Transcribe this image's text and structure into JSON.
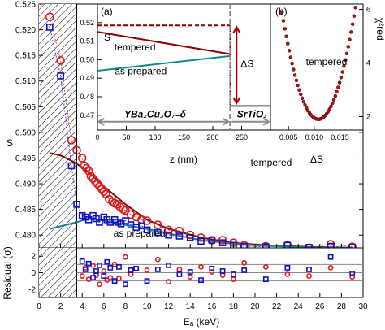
{
  "chart_data": [
    {
      "id": "main",
      "type": "scatter",
      "xlabel": "Eₐ (keV)",
      "ylabel": "S",
      "xlim": [
        0,
        30
      ],
      "ylim": [
        0.4775,
        0.525
      ],
      "xticks": [
        0,
        2,
        4,
        6,
        8,
        10,
        12,
        14,
        16,
        18,
        20,
        22,
        24,
        26,
        28,
        30
      ],
      "yticks": [
        0.48,
        0.485,
        0.49,
        0.495,
        0.5,
        0.505,
        0.51,
        0.515,
        0.52,
        0.525
      ],
      "shaded_region_x": [
        0,
        3.5
      ],
      "annotations": [
        {
          "text": "tempered",
          "x": 21.5,
          "y": 0.4935,
          "color": "#cc0000"
        },
        {
          "text": "as prepared",
          "x": 9.3,
          "y": 0.4797,
          "color": "#0000cc"
        }
      ],
      "series": [
        {
          "marker": "circle",
          "color": "#e0191a",
          "x": [
            1.0,
            2.0,
            3.0,
            3.5,
            4.0,
            4.2,
            4.4,
            4.6,
            4.8,
            5.0,
            5.2,
            5.4,
            5.6,
            5.8,
            6.0,
            6.2,
            6.5,
            6.8,
            7.0,
            7.2,
            7.5,
            7.8,
            8.0,
            8.5,
            9.0,
            9.5,
            10.0,
            11.0,
            12.0,
            13.0,
            14.0,
            15.0,
            16.0,
            17.0,
            18.0,
            19.0,
            21.0,
            23.0,
            25.0,
            27.0,
            29.0
          ],
          "y": [
            0.5225,
            0.514,
            0.4985,
            0.4965,
            0.495,
            0.4935,
            0.493,
            0.4925,
            0.4915,
            0.491,
            0.4905,
            0.49,
            0.4895,
            0.489,
            0.4885,
            0.488,
            0.487,
            0.4865,
            0.4862,
            0.486,
            0.4855,
            0.485,
            0.4848,
            0.484,
            0.4835,
            0.483,
            0.4828,
            0.482,
            0.481,
            0.4808,
            0.48,
            0.4795,
            0.479,
            0.479,
            0.4785,
            0.478,
            0.4778,
            0.478,
            0.4775,
            0.4782,
            0.4777
          ]
        },
        {
          "marker": "square",
          "color": "#1010c8",
          "x": [
            1.0,
            2.0,
            3.0,
            3.5,
            4.0,
            4.3,
            4.6,
            5.0,
            5.3,
            5.6,
            6.0,
            6.3,
            6.6,
            7.0,
            7.3,
            7.6,
            8.0,
            8.5,
            9.0,
            9.5,
            10.0,
            11.0,
            12.0,
            13.0,
            14.0,
            15.0,
            16.0,
            17.0,
            18.0,
            19.0,
            21.0,
            23.0,
            25.0,
            27.0,
            29.0
          ],
          "y": [
            0.5205,
            0.511,
            0.4935,
            0.486,
            0.4838,
            0.4835,
            0.483,
            0.4838,
            0.4832,
            0.4825,
            0.4835,
            0.483,
            0.4825,
            0.483,
            0.4825,
            0.4822,
            0.4828,
            0.482,
            0.4815,
            0.4818,
            0.481,
            0.4805,
            0.48,
            0.4798,
            0.4795,
            0.4788,
            0.479,
            0.4785,
            0.478,
            0.4778,
            0.4777,
            0.478,
            0.4776,
            0.4778,
            0.4776
          ]
        },
        {
          "marker": "line",
          "color": "#7a0a0a",
          "x": [
            1.0,
            2.0,
            3.0,
            4.0,
            5.0,
            6.0,
            8.0,
            10.0,
            12.0,
            15.0,
            18.0,
            21.0,
            25.0,
            29.0
          ],
          "y": [
            0.496,
            0.4955,
            0.4945,
            0.4932,
            0.4915,
            0.4895,
            0.486,
            0.483,
            0.4812,
            0.4795,
            0.4785,
            0.478,
            0.4777,
            0.4775
          ]
        },
        {
          "marker": "line",
          "color": "#12888a",
          "x": [
            1.0,
            3.5,
            4.5,
            6.0,
            8.0,
            10.0,
            12.0,
            15.0,
            18.0,
            21.0,
            25.0,
            29.0
          ],
          "y": [
            0.4812,
            0.4825,
            0.4832,
            0.4828,
            0.482,
            0.4812,
            0.4803,
            0.479,
            0.4783,
            0.4779,
            0.4776,
            0.4775
          ]
        }
      ]
    },
    {
      "id": "residual",
      "type": "scatter",
      "xlabel": "Eₐ (keV)",
      "ylabel": "Residual (σ)",
      "xlim": [
        0,
        30
      ],
      "ylim": [
        -3,
        3
      ],
      "yticks": [
        -2,
        0,
        2
      ],
      "reference_lines_y": [
        -1,
        0,
        1
      ],
      "series": [
        {
          "marker": "circle",
          "color": "#e0191a",
          "x": [
            4.0,
            4.3,
            4.6,
            5.0,
            5.3,
            5.6,
            6.0,
            6.3,
            6.6,
            7.0,
            7.4,
            8.0,
            8.5,
            9.0,
            10.0,
            11.0,
            12.0,
            13.0,
            14.0,
            15.0,
            16.0,
            17.0,
            18.0,
            19.0,
            21.0,
            23.0,
            25.0,
            27.0,
            29.0
          ],
          "y": [
            -0.4,
            0.6,
            -0.8,
            0.9,
            -0.3,
            -1.4,
            0.2,
            -0.9,
            -0.6,
            1.0,
            -0.7,
            1.9,
            -0.2,
            0.5,
            0.3,
            1.6,
            -1.1,
            0.4,
            -0.5,
            0.7,
            0.1,
            -0.3,
            -0.8,
            1.2,
            0.7,
            -0.2,
            -0.4,
            0.6,
            -0.5
          ]
        },
        {
          "marker": "square",
          "color": "#1010c8",
          "x": [
            4.0,
            4.3,
            4.6,
            5.0,
            5.3,
            5.6,
            6.0,
            6.3,
            6.6,
            7.0,
            7.4,
            8.0,
            8.5,
            9.0,
            10.0,
            11.0,
            12.0,
            13.0,
            14.0,
            15.0,
            16.0,
            17.0,
            18.0,
            19.0,
            21.0,
            23.0,
            25.0,
            27.0,
            29.0
          ],
          "y": [
            1.4,
            0.4,
            1.1,
            -0.6,
            0.2,
            0.9,
            -0.4,
            1.3,
            0.6,
            -1.0,
            0.7,
            -1.4,
            0.3,
            0.5,
            -1.0,
            0.4,
            0.9,
            -0.2,
            0.1,
            -0.9,
            0.5,
            0.2,
            -0.2,
            0.3,
            -0.8,
            0.6,
            0.4,
            1.9,
            -0.1
          ]
        }
      ]
    },
    {
      "id": "inset_a",
      "type": "line",
      "panel_label": "(a)",
      "xlabel": "z (nm)",
      "ylabel": "S",
      "xlim": [
        0,
        300
      ],
      "ylim": [
        0.462,
        0.53
      ],
      "xticks": [
        0,
        50,
        100,
        150,
        200,
        250
      ],
      "yticks": [
        0.47,
        0.48,
        0.49,
        0.5,
        0.51,
        0.52
      ],
      "interface_z": 230,
      "layer_labels": [
        "YBa₂Cu₃O₇₋δ",
        "SrTiO₃"
      ],
      "delta_label": "ΔS",
      "annotations": [
        {
          "text": "tempered",
          "x": 65,
          "y": 0.505,
          "color": "#8b0000"
        },
        {
          "text": "as prepared",
          "x": 75,
          "y": 0.492,
          "color": "#0f8a8a"
        }
      ],
      "series": [
        {
          "color": "#8b0000",
          "x": [
            0,
            230
          ],
          "y": [
            0.515,
            0.503
          ]
        },
        {
          "color": "#0f8a8a",
          "x": [
            0,
            230
          ],
          "y": [
            0.494,
            0.502
          ]
        },
        {
          "color": "#8b0000",
          "dash": true,
          "x": [
            0,
            230
          ],
          "y": [
            0.5185,
            0.5185
          ]
        },
        {
          "color": "#555555",
          "x": [
            230,
            300
          ],
          "y": [
            0.475,
            0.475
          ]
        }
      ]
    },
    {
      "id": "inset_b",
      "type": "scatter",
      "panel_label": "(b)",
      "xlabel": "ΔS",
      "ylabel": "χ²red",
      "xlim": [
        0.0015,
        0.0195
      ],
      "ylim": [
        1.5,
        6.2
      ],
      "xticks": [
        0.005,
        0.01,
        0.015
      ],
      "yticks": [
        2,
        4,
        6
      ],
      "series_name": "tempered",
      "curve": {
        "color": "#b01515",
        "minimum": [
          0.0108,
          1.9
        ],
        "curvature": 80000
      }
    }
  ]
}
